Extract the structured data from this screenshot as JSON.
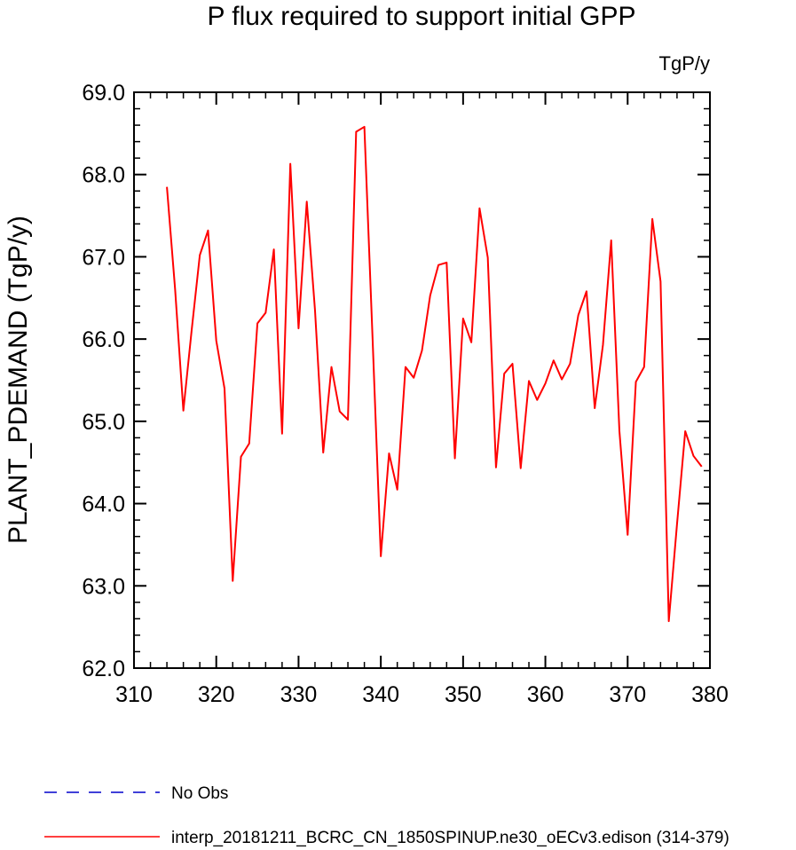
{
  "chart_data": {
    "type": "line",
    "title": "P flux required to support initial GPP",
    "units_label": "TgP/y",
    "xlabel": "",
    "ylabel": "PLANT_PDEMAND  (TgP/y)",
    "xlim": [
      310,
      380
    ],
    "ylim": [
      62.0,
      69.0
    ],
    "x_ticks": [
      310,
      320,
      330,
      340,
      350,
      360,
      370,
      380
    ],
    "x_tick_labels": [
      "310",
      "320",
      "330",
      "340",
      "350",
      "360",
      "370",
      "380"
    ],
    "y_ticks": [
      62.0,
      63.0,
      64.0,
      65.0,
      66.0,
      67.0,
      68.0,
      69.0
    ],
    "y_tick_labels": [
      "62.0",
      "63.0",
      "64.0",
      "65.0",
      "66.0",
      "67.0",
      "68.0",
      "69.0"
    ],
    "grid": false,
    "legend_position": "bottom",
    "series": [
      {
        "name": "No Obs",
        "color": "#0000cc",
        "dash": true,
        "x": [],
        "values": []
      },
      {
        "name": "interp_20181211_BCRC_CN_1850SPINUP.ne30_oECv3.edison (314-379)",
        "color": "#ff0000",
        "dash": false,
        "x": [
          314,
          315,
          316,
          317,
          318,
          319,
          320,
          321,
          322,
          323,
          324,
          325,
          326,
          327,
          328,
          329,
          330,
          331,
          332,
          333,
          334,
          335,
          336,
          337,
          338,
          339,
          340,
          341,
          342,
          343,
          344,
          345,
          346,
          347,
          348,
          349,
          350,
          351,
          352,
          353,
          354,
          355,
          356,
          357,
          358,
          359,
          360,
          361,
          362,
          363,
          364,
          365,
          366,
          367,
          368,
          369,
          370,
          371,
          372,
          373,
          374,
          375,
          376,
          377,
          378,
          379
        ],
        "values": [
          67.85,
          66.6,
          65.13,
          66.1,
          67.02,
          67.32,
          65.98,
          65.4,
          63.06,
          64.57,
          64.73,
          66.19,
          66.32,
          67.09,
          64.85,
          68.13,
          66.13,
          67.67,
          66.35,
          64.62,
          65.66,
          65.12,
          65.02,
          68.52,
          68.58,
          66.0,
          63.36,
          64.61,
          64.17,
          65.66,
          65.53,
          65.86,
          66.53,
          66.9,
          66.93,
          64.55,
          66.25,
          65.96,
          67.59,
          66.99,
          64.44,
          65.58,
          65.7,
          64.43,
          65.49,
          65.26,
          65.46,
          65.74,
          65.51,
          65.7,
          66.29,
          66.58,
          65.16,
          65.93,
          67.2,
          64.88,
          63.62,
          65.48,
          65.66,
          67.46,
          66.7,
          62.57,
          63.75,
          64.88,
          64.58,
          64.45
        ]
      }
    ]
  }
}
